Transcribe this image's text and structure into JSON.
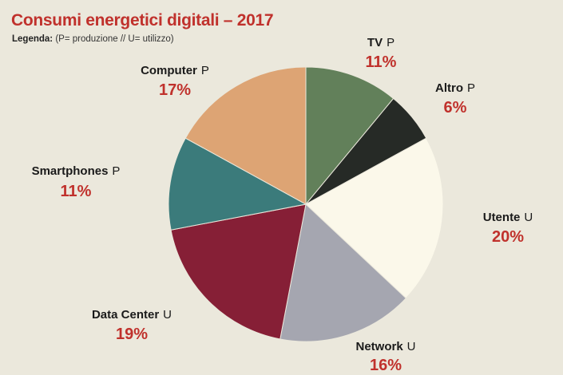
{
  "title": "Consumi energetici digitali – 2017",
  "legend": {
    "prefix": "Legenda:",
    "text": "(P= produzione // U= utilizzo)"
  },
  "chart_data": {
    "type": "pie",
    "title": "Consumi energetici digitali – 2017",
    "slices": [
      {
        "label": "TV",
        "tag": "P",
        "value": 11,
        "value_label": "11%",
        "color": "#62805a"
      },
      {
        "label": "Altro",
        "tag": "P",
        "value": 6,
        "value_label": "6%",
        "color": "#262a26"
      },
      {
        "label": "Utente",
        "tag": "U",
        "value": 20,
        "value_label": "20%",
        "color": "#fbf8ea"
      },
      {
        "label": "Network",
        "tag": "U",
        "value": 16,
        "value_label": "16%",
        "color": "#a5a6b0"
      },
      {
        "label": "Data Center",
        "tag": "U",
        "value": 19,
        "value_label": "19%",
        "color": "#861f36"
      },
      {
        "label": "Smartphones",
        "tag": "P",
        "value": 11,
        "value_label": "11%",
        "color": "#3b7b7b"
      },
      {
        "label": "Computer",
        "tag": "P",
        "value": 17,
        "value_label": "17%",
        "color": "#dda474"
      }
    ],
    "start": "12 o'clock",
    "direction": "clockwise",
    "value_color": "#c0312c"
  }
}
